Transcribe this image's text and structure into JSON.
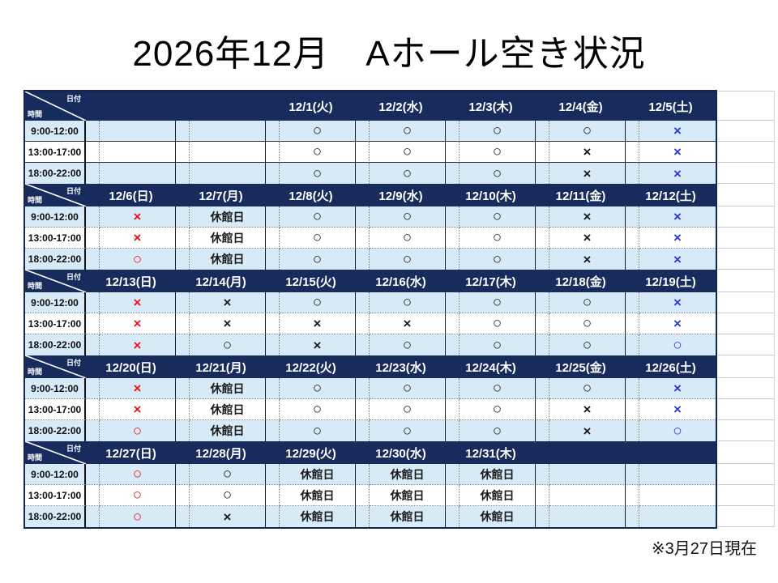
{
  "title": "2026年12月　Aホール空き状況",
  "footer_note": "※3月27日現在",
  "corner": {
    "date_label": "日付",
    "time_label": "時間"
  },
  "time_slots": [
    "9:00-12:00",
    "13:00-17:00",
    "18:00-22:00"
  ],
  "closed_label": "休館日",
  "colors": {
    "navy_header": "#172b5c",
    "row_tint": "#d6eaf7",
    "black": "#1b1b1b",
    "red": "#ec1414",
    "blue": "#2a3ad6"
  },
  "weeks": [
    {
      "dates": [
        "",
        "",
        "12/1(火)",
        "12/2(水)",
        "12/3(木)",
        "12/4(金)",
        "12/5(土)"
      ],
      "rows": [
        [
          {
            "text": "",
            "color": "black"
          },
          {
            "text": "",
            "color": "black"
          },
          {
            "text": "○",
            "color": "black"
          },
          {
            "text": "○",
            "color": "black"
          },
          {
            "text": "○",
            "color": "black"
          },
          {
            "text": "○",
            "color": "black"
          },
          {
            "text": "×",
            "color": "blue"
          }
        ],
        [
          {
            "text": "",
            "color": "black"
          },
          {
            "text": "",
            "color": "black"
          },
          {
            "text": "○",
            "color": "black"
          },
          {
            "text": "○",
            "color": "black"
          },
          {
            "text": "○",
            "color": "black"
          },
          {
            "text": "×",
            "color": "black"
          },
          {
            "text": "×",
            "color": "blue"
          }
        ],
        [
          {
            "text": "",
            "color": "black"
          },
          {
            "text": "",
            "color": "black"
          },
          {
            "text": "○",
            "color": "black"
          },
          {
            "text": "○",
            "color": "black"
          },
          {
            "text": "○",
            "color": "black"
          },
          {
            "text": "×",
            "color": "black"
          },
          {
            "text": "×",
            "color": "blue"
          }
        ]
      ]
    },
    {
      "dates": [
        "12/6(日)",
        "12/7(月)",
        "12/8(火)",
        "12/9(水)",
        "12/10(木)",
        "12/11(金)",
        "12/12(土)"
      ],
      "rows": [
        [
          {
            "text": "×",
            "color": "red"
          },
          {
            "text": "休館日",
            "color": "black"
          },
          {
            "text": "○",
            "color": "black"
          },
          {
            "text": "○",
            "color": "black"
          },
          {
            "text": "○",
            "color": "black"
          },
          {
            "text": "×",
            "color": "black"
          },
          {
            "text": "×",
            "color": "blue"
          }
        ],
        [
          {
            "text": "×",
            "color": "red"
          },
          {
            "text": "休館日",
            "color": "black"
          },
          {
            "text": "○",
            "color": "black"
          },
          {
            "text": "○",
            "color": "black"
          },
          {
            "text": "○",
            "color": "black"
          },
          {
            "text": "×",
            "color": "black"
          },
          {
            "text": "×",
            "color": "blue"
          }
        ],
        [
          {
            "text": "○",
            "color": "red"
          },
          {
            "text": "休館日",
            "color": "black"
          },
          {
            "text": "○",
            "color": "black"
          },
          {
            "text": "○",
            "color": "black"
          },
          {
            "text": "○",
            "color": "black"
          },
          {
            "text": "×",
            "color": "black"
          },
          {
            "text": "×",
            "color": "blue"
          }
        ]
      ]
    },
    {
      "dates": [
        "12/13(日)",
        "12/14(月)",
        "12/15(火)",
        "12/16(水)",
        "12/17(木)",
        "12/18(金)",
        "12/19(土)"
      ],
      "rows": [
        [
          {
            "text": "×",
            "color": "red"
          },
          {
            "text": "×",
            "color": "black"
          },
          {
            "text": "○",
            "color": "black"
          },
          {
            "text": "○",
            "color": "black"
          },
          {
            "text": "○",
            "color": "black"
          },
          {
            "text": "○",
            "color": "black"
          },
          {
            "text": "×",
            "color": "blue"
          }
        ],
        [
          {
            "text": "×",
            "color": "red"
          },
          {
            "text": "×",
            "color": "black"
          },
          {
            "text": "×",
            "color": "black"
          },
          {
            "text": "×",
            "color": "black"
          },
          {
            "text": "○",
            "color": "black"
          },
          {
            "text": "○",
            "color": "black"
          },
          {
            "text": "×",
            "color": "blue"
          }
        ],
        [
          {
            "text": "×",
            "color": "red"
          },
          {
            "text": "○",
            "color": "black"
          },
          {
            "text": "×",
            "color": "black"
          },
          {
            "text": "○",
            "color": "black"
          },
          {
            "text": "○",
            "color": "black"
          },
          {
            "text": "○",
            "color": "black"
          },
          {
            "text": "○",
            "color": "blue"
          }
        ]
      ]
    },
    {
      "dates": [
        "12/20(日)",
        "12/21(月)",
        "12/22(火)",
        "12/23(水)",
        "12/24(木)",
        "12/25(金)",
        "12/26(土)"
      ],
      "rows": [
        [
          {
            "text": "×",
            "color": "red"
          },
          {
            "text": "休館日",
            "color": "black"
          },
          {
            "text": "○",
            "color": "black"
          },
          {
            "text": "○",
            "color": "black"
          },
          {
            "text": "○",
            "color": "black"
          },
          {
            "text": "○",
            "color": "black"
          },
          {
            "text": "×",
            "color": "blue"
          }
        ],
        [
          {
            "text": "×",
            "color": "red"
          },
          {
            "text": "休館日",
            "color": "black"
          },
          {
            "text": "○",
            "color": "black"
          },
          {
            "text": "○",
            "color": "black"
          },
          {
            "text": "○",
            "color": "black"
          },
          {
            "text": "×",
            "color": "black"
          },
          {
            "text": "×",
            "color": "blue"
          }
        ],
        [
          {
            "text": "○",
            "color": "red"
          },
          {
            "text": "休館日",
            "color": "black"
          },
          {
            "text": "○",
            "color": "black"
          },
          {
            "text": "○",
            "color": "black"
          },
          {
            "text": "○",
            "color": "black"
          },
          {
            "text": "×",
            "color": "black"
          },
          {
            "text": "○",
            "color": "blue"
          }
        ]
      ]
    },
    {
      "dates": [
        "12/27(日)",
        "12/28(月)",
        "12/29(火)",
        "12/30(水)",
        "12/31(木)",
        "",
        ""
      ],
      "rows": [
        [
          {
            "text": "○",
            "color": "red"
          },
          {
            "text": "○",
            "color": "black"
          },
          {
            "text": "休館日",
            "color": "black"
          },
          {
            "text": "休館日",
            "color": "black"
          },
          {
            "text": "休館日",
            "color": "black"
          },
          {
            "text": "",
            "color": "black"
          },
          {
            "text": "",
            "color": "black"
          }
        ],
        [
          {
            "text": "○",
            "color": "red"
          },
          {
            "text": "○",
            "color": "black"
          },
          {
            "text": "休館日",
            "color": "black"
          },
          {
            "text": "休館日",
            "color": "black"
          },
          {
            "text": "休館日",
            "color": "black"
          },
          {
            "text": "",
            "color": "black"
          },
          {
            "text": "",
            "color": "black"
          }
        ],
        [
          {
            "text": "○",
            "color": "red"
          },
          {
            "text": "×",
            "color": "black"
          },
          {
            "text": "休館日",
            "color": "black"
          },
          {
            "text": "休館日",
            "color": "black"
          },
          {
            "text": "休館日",
            "color": "black"
          },
          {
            "text": "",
            "color": "black"
          },
          {
            "text": "",
            "color": "black"
          }
        ]
      ]
    }
  ]
}
